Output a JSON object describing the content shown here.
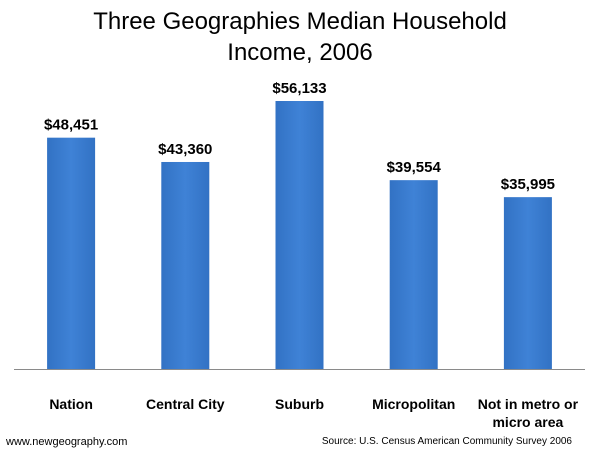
{
  "chart_data": {
    "type": "bar",
    "title_lines": [
      "Three Geographies Median Household",
      "Income, 2006"
    ],
    "categories": [
      [
        "Nation"
      ],
      [
        "Central City"
      ],
      [
        "Suburb"
      ],
      [
        "Micropolitan"
      ],
      [
        "Not in metro or",
        "micro area"
      ]
    ],
    "values": [
      48451,
      43360,
      56133,
      39554,
      35995
    ],
    "value_labels": [
      "$48,451",
      "$43,360",
      "$56,133",
      "$39,554",
      "$35,995"
    ],
    "ylim": [
      0,
      60000
    ],
    "grid": false,
    "bar_color": "#3272c4",
    "bar_color_light": "#3f82d6"
  },
  "footer": {
    "site": "www.newgeography.com",
    "source": "Source:  U.S. Census American Community Survey 2006"
  }
}
